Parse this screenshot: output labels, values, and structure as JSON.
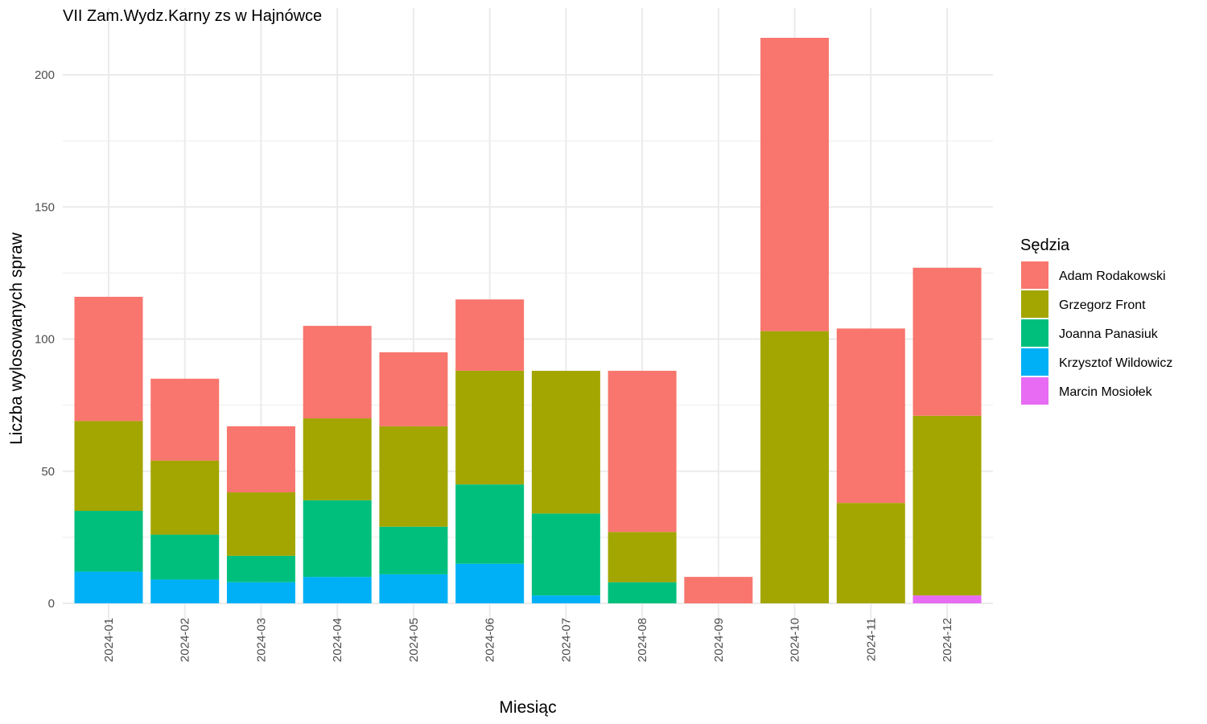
{
  "chart_data": {
    "type": "bar",
    "stacked": true,
    "title": "VII Zam.Wydz.Karny zs w Hajnówce",
    "xlabel": "Miesiąc",
    "ylabel": "Liczba wylosowanych spraw",
    "ylim": [
      0,
      225
    ],
    "yticks": [
      0,
      50,
      100,
      150,
      200
    ],
    "grid": true,
    "legend_title": "Sędzia",
    "legend_position": "right",
    "categories": [
      "2024-01",
      "2024-02",
      "2024-03",
      "2024-04",
      "2024-05",
      "2024-06",
      "2024-07",
      "2024-08",
      "2024-09",
      "2024-10",
      "2024-11",
      "2024-12"
    ],
    "series": [
      {
        "name": "Marcin Mosiołek",
        "color": "#E76BF3",
        "values": [
          0,
          0,
          0,
          0,
          0,
          0,
          0,
          0,
          0,
          0,
          0,
          3
        ]
      },
      {
        "name": "Krzysztof Wildowicz",
        "color": "#00B0F6",
        "values": [
          12,
          9,
          8,
          10,
          11,
          15,
          3,
          0,
          0,
          0,
          0,
          0
        ]
      },
      {
        "name": "Joanna Panasiuk",
        "color": "#00BF7D",
        "values": [
          23,
          17,
          10,
          29,
          18,
          30,
          31,
          8,
          0,
          0,
          0,
          0
        ]
      },
      {
        "name": "Grzegorz Front",
        "color": "#A3A500",
        "values": [
          34,
          28,
          24,
          31,
          38,
          43,
          54,
          19,
          0,
          103,
          38,
          68
        ]
      },
      {
        "name": "Adam Rodakowski",
        "color": "#F8766D",
        "values": [
          47,
          31,
          25,
          35,
          28,
          27,
          0,
          61,
          10,
          111,
          66,
          56
        ]
      }
    ],
    "legend_order": [
      "Adam Rodakowski",
      "Grzegorz Front",
      "Joanna Panasiuk",
      "Krzysztof Wildowicz",
      "Marcin Mosiołek"
    ]
  }
}
